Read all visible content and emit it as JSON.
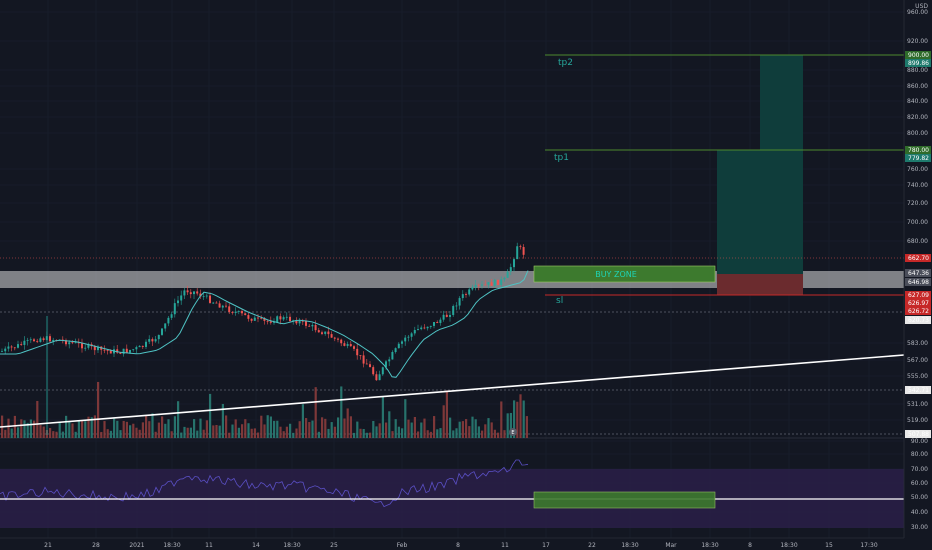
{
  "currency": "USD",
  "colors": {
    "background": "#131722",
    "grid": "#1f2330",
    "up": "#26a69a",
    "down": "#ef5350",
    "volume_up": "#2a7d74",
    "volume_down": "#8b3c3c",
    "ma": "#4fc3c4",
    "trendline": "#ffffff",
    "buy_zone": "#3d7a2e",
    "buy_zone_text": "#1fd4b6",
    "target_zone": "#0f3d3b",
    "stop_zone": "#6b2b2e",
    "tp_line": "#4c8a2d",
    "sl_line": "#c62828",
    "resistance_band": "#d8d8d8",
    "rsi_band": "#2a1f48",
    "rsi_line": "#5a4fc4",
    "label_text": "#26a69a"
  },
  "price_axis": {
    "ticks": [
      {
        "value": "960.00",
        "y": 12
      },
      {
        "value": "920.00",
        "y": 41
      },
      {
        "value": "880.00",
        "y": 70
      },
      {
        "value": "860.00",
        "y": 86
      },
      {
        "value": "840.00",
        "y": 101
      },
      {
        "value": "820.00",
        "y": 117
      },
      {
        "value": "800.00",
        "y": 133
      },
      {
        "value": "760.00",
        "y": 169
      },
      {
        "value": "740.00",
        "y": 185
      },
      {
        "value": "720.00",
        "y": 203
      },
      {
        "value": "700.00",
        "y": 222
      },
      {
        "value": "680.00",
        "y": 241
      },
      {
        "value": "583.00",
        "y": 343
      },
      {
        "value": "567.00",
        "y": 360
      },
      {
        "value": "555.00",
        "y": 376
      },
      {
        "value": "531.00",
        "y": 404
      },
      {
        "value": "519.00",
        "y": 420
      },
      {
        "value": "90.00",
        "y": 441
      },
      {
        "value": "80.00",
        "y": 454
      },
      {
        "value": "70.00",
        "y": 469
      },
      {
        "value": "60.00",
        "y": 483
      },
      {
        "value": "50.00",
        "y": 497
      },
      {
        "value": "40.00",
        "y": 512
      },
      {
        "value": "30.00",
        "y": 527
      }
    ],
    "badges": [
      {
        "value": "900.00",
        "y": 55,
        "color": "#2f6b2a"
      },
      {
        "value": "899.86",
        "y": 63,
        "color": "#1e7a6d"
      },
      {
        "value": "780.00",
        "y": 150,
        "color": "#2f6b2a"
      },
      {
        "value": "779.82",
        "y": 158,
        "color": "#1e7a6d"
      },
      {
        "value": "662.70",
        "y": 258,
        "color": "#c62828"
      },
      {
        "value": "647.36",
        "y": 273,
        "color": "#4a4e5a"
      },
      {
        "value": "646.98",
        "y": 282,
        "color": "#4a4e5a"
      },
      {
        "value": "627.09",
        "y": 295,
        "color": "#c62828"
      },
      {
        "value": "626.97",
        "y": 303,
        "color": "#c62828"
      },
      {
        "value": "626.72",
        "y": 311,
        "color": "#c62828"
      },
      {
        "value": "620.73",
        "y": 320,
        "color": "#e8e8e8"
      },
      {
        "value": "542.71",
        "y": 390,
        "color": "#e8e8e8"
      },
      {
        "value": "507.88",
        "y": 434,
        "color": "#e8e8e8"
      }
    ]
  },
  "time_axis": [
    {
      "label": "21",
      "x": 48
    },
    {
      "label": "28",
      "x": 96
    },
    {
      "label": "2021",
      "x": 137
    },
    {
      "label": "18:30",
      "x": 172
    },
    {
      "label": "11",
      "x": 209
    },
    {
      "label": "14",
      "x": 256
    },
    {
      "label": "18:30",
      "x": 292
    },
    {
      "label": "25",
      "x": 334
    },
    {
      "label": "Feb",
      "x": 402
    },
    {
      "label": "8",
      "x": 458
    },
    {
      "label": "11",
      "x": 505
    },
    {
      "label": "17",
      "x": 546
    },
    {
      "label": "22",
      "x": 592
    },
    {
      "label": "18:30",
      "x": 630
    },
    {
      "label": "Mar",
      "x": 671
    },
    {
      "label": "18:30",
      "x": 710
    },
    {
      "label": "8",
      "x": 750
    },
    {
      "label": "18:30",
      "x": 789
    },
    {
      "label": "15",
      "x": 829
    },
    {
      "label": "17:30",
      "x": 869
    }
  ],
  "annotations": {
    "tp2": "tp2",
    "tp1": "tp1",
    "buy_zone": "BUY ZONE",
    "sl": "sl",
    "earnings_marker": "E"
  }
}
